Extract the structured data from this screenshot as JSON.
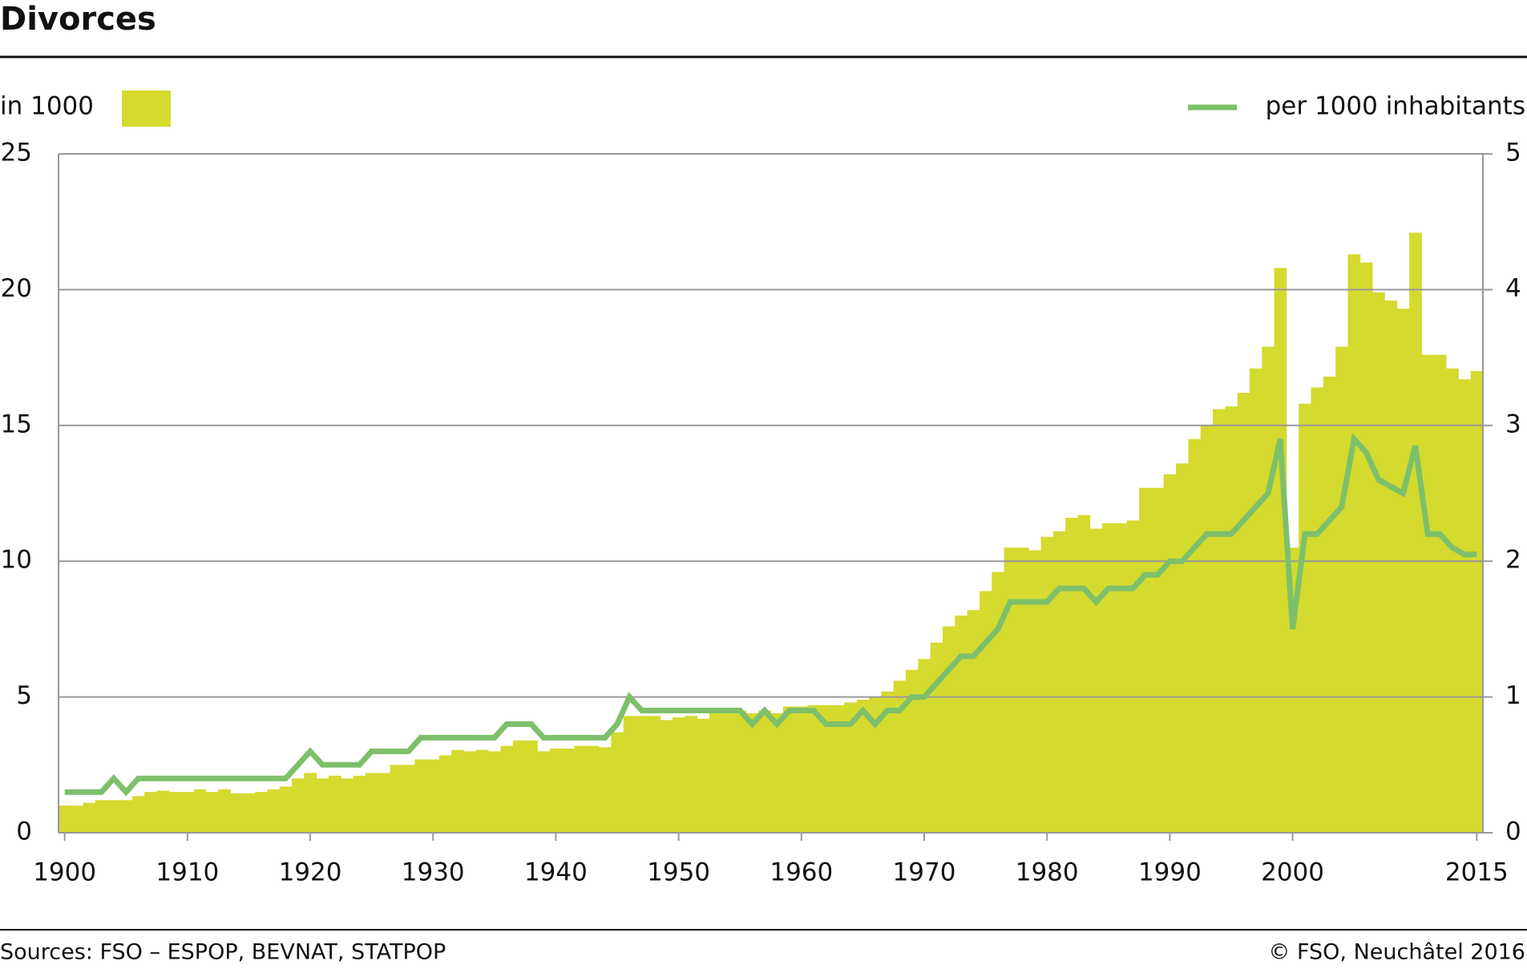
{
  "chart_data": {
    "type": "bar-line",
    "title": "Divorces",
    "y_label": "in 1000",
    "source": "Sources: FSO – ESPOP, BEVNAT, STATPOP",
    "copyright": "© FSO, Neuchâtel 2016",
    "x": [
      1900,
      1901,
      1902,
      1903,
      1904,
      1905,
      1906,
      1907,
      1908,
      1909,
      1910,
      1911,
      1912,
      1913,
      1914,
      1915,
      1916,
      1917,
      1918,
      1919,
      1920,
      1921,
      1922,
      1923,
      1924,
      1925,
      1926,
      1927,
      1928,
      1929,
      1930,
      1931,
      1932,
      1933,
      1934,
      1935,
      1936,
      1937,
      1938,
      1939,
      1940,
      1941,
      1942,
      1943,
      1944,
      1945,
      1946,
      1947,
      1948,
      1949,
      1950,
      1951,
      1952,
      1953,
      1954,
      1955,
      1956,
      1957,
      1958,
      1959,
      1960,
      1961,
      1962,
      1963,
      1964,
      1965,
      1966,
      1967,
      1968,
      1969,
      1970,
      1971,
      1972,
      1973,
      1974,
      1975,
      1976,
      1977,
      1978,
      1979,
      1980,
      1981,
      1982,
      1983,
      1984,
      1985,
      1986,
      1987,
      1988,
      1989,
      1990,
      1991,
      1992,
      1993,
      1994,
      1995,
      1996,
      1997,
      1998,
      1999,
      2000,
      2001,
      2002,
      2003,
      2004,
      2005,
      2006,
      2007,
      2008,
      2009,
      2010,
      2011,
      2012,
      2013,
      2014,
      2015
    ],
    "series": [
      {
        "name": "in 1000",
        "kind": "bar",
        "color": "#d4da2e",
        "values": [
          1.0,
          1.0,
          1.1,
          1.2,
          1.2,
          1.2,
          1.35,
          1.5,
          1.55,
          1.5,
          1.5,
          1.6,
          1.5,
          1.6,
          1.45,
          1.45,
          1.5,
          1.6,
          1.7,
          2.0,
          2.2,
          2.0,
          2.1,
          2.0,
          2.1,
          2.2,
          2.2,
          2.5,
          2.5,
          2.7,
          2.7,
          2.85,
          3.05,
          3.0,
          3.05,
          3.0,
          3.2,
          3.4,
          3.4,
          3.0,
          3.1,
          3.1,
          3.2,
          3.2,
          3.15,
          3.7,
          4.3,
          4.3,
          4.3,
          4.15,
          4.25,
          4.3,
          4.2,
          4.4,
          4.4,
          4.5,
          4.4,
          4.5,
          4.4,
          4.65,
          4.65,
          4.7,
          4.7,
          4.7,
          4.8,
          4.9,
          5.0,
          5.2,
          5.6,
          6.0,
          6.4,
          7.0,
          7.6,
          8.0,
          8.2,
          8.9,
          9.6,
          10.5,
          10.5,
          10.4,
          10.9,
          11.1,
          11.6,
          11.7,
          11.2,
          11.4,
          11.4,
          11.5,
          12.7,
          12.7,
          13.2,
          13.6,
          14.5,
          15.0,
          15.6,
          15.7,
          16.2,
          17.1,
          17.9,
          20.8,
          10.5,
          15.8,
          16.4,
          16.8,
          17.9,
          21.3,
          21.0,
          19.9,
          19.6,
          19.3,
          22.1,
          17.6,
          17.6,
          17.1,
          16.7,
          17.0
        ]
      },
      {
        "name": "per 1000 inhabitants",
        "kind": "line",
        "axis": "y2",
        "color": "#7dc06b",
        "values": [
          0.3,
          0.3,
          0.3,
          0.3,
          0.4,
          0.3,
          0.4,
          0.4,
          0.4,
          0.4,
          0.4,
          0.4,
          0.4,
          0.4,
          0.4,
          0.4,
          0.4,
          0.4,
          0.4,
          0.5,
          0.6,
          0.5,
          0.5,
          0.5,
          0.5,
          0.6,
          0.6,
          0.6,
          0.6,
          0.7,
          0.7,
          0.7,
          0.7,
          0.7,
          0.7,
          0.7,
          0.8,
          0.8,
          0.8,
          0.7,
          0.7,
          0.7,
          0.7,
          0.7,
          0.7,
          0.8,
          1.0,
          0.9,
          0.9,
          0.9,
          0.9,
          0.9,
          0.9,
          0.9,
          0.9,
          0.9,
          0.8,
          0.9,
          0.8,
          0.9,
          0.9,
          0.9,
          0.8,
          0.8,
          0.8,
          0.9,
          0.8,
          0.9,
          0.9,
          1.0,
          1.0,
          1.1,
          1.2,
          1.3,
          1.3,
          1.4,
          1.5,
          1.7,
          1.7,
          1.7,
          1.7,
          1.8,
          1.8,
          1.8,
          1.7,
          1.8,
          1.8,
          1.8,
          1.9,
          1.9,
          2.0,
          2.0,
          2.1,
          2.2,
          2.2,
          2.2,
          2.3,
          2.4,
          2.5,
          2.9,
          1.5,
          2.2,
          2.2,
          2.3,
          2.4,
          2.9,
          2.8,
          2.6,
          2.55,
          2.5,
          2.85,
          2.2,
          2.2,
          2.1,
          2.05,
          2.05
        ]
      }
    ],
    "xlim": [
      1899.5,
      2015.5
    ],
    "xticks": [
      1900,
      1910,
      1920,
      1930,
      1940,
      1950,
      1960,
      1970,
      1980,
      1990,
      2000,
      2015
    ],
    "ylim": [
      0,
      25
    ],
    "yticks": [
      0,
      5,
      10,
      15,
      20,
      25
    ],
    "y2lim": [
      0,
      5
    ],
    "y2ticks": [
      0,
      1,
      2,
      3,
      4,
      5
    ],
    "grid": true
  }
}
